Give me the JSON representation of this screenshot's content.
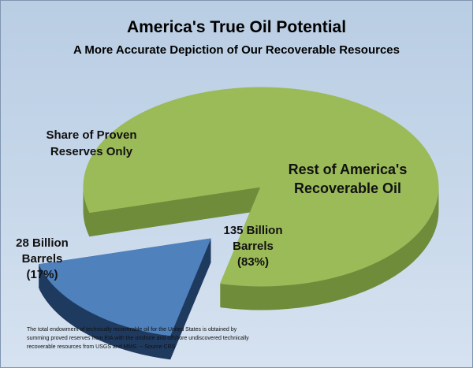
{
  "chart_data": {
    "type": "pie",
    "title": "America's True Oil Potential",
    "subtitle": "A More Accurate Depiction of Our Recoverable Resources",
    "slices": [
      {
        "name": "Rest of America's Recoverable Oil",
        "value": 135,
        "percent": 83,
        "value_label": "135 Billion Barrels",
        "percent_label": "(83%)",
        "color": "#9bbb59",
        "side_color": "#6f8c3a"
      },
      {
        "name": "Share of Proven Reserves Only",
        "value": 28,
        "percent": 17,
        "value_label": "28 Billion Barrels",
        "percent_label": "(17%)",
        "color": "#4f81bd",
        "side_color": "#1f3a5f",
        "exploded": true
      }
    ],
    "style": "3d-exploded"
  },
  "labels": {
    "green_name_line1": "Rest of America's",
    "green_name_line2": "Recoverable Oil",
    "green_val_line1": "135 Billion",
    "green_val_line2": "Barrels",
    "green_val_line3": "(83%)",
    "blue_name_line1": "Share of Proven",
    "blue_name_line2": "Reserves Only",
    "blue_val_line1": "28 Billion",
    "blue_val_line2": "Barrels",
    "blue_val_line3": "(17%)"
  },
  "note": {
    "line1": "The total endowment of technically recoverable oil for the United States is obtained by",
    "line2": "summing proved reserves from EIA with the onshore and offshore undiscovered technically",
    "line3": "recoverable resources from USGS and MMS. -- Source CRS"
  }
}
